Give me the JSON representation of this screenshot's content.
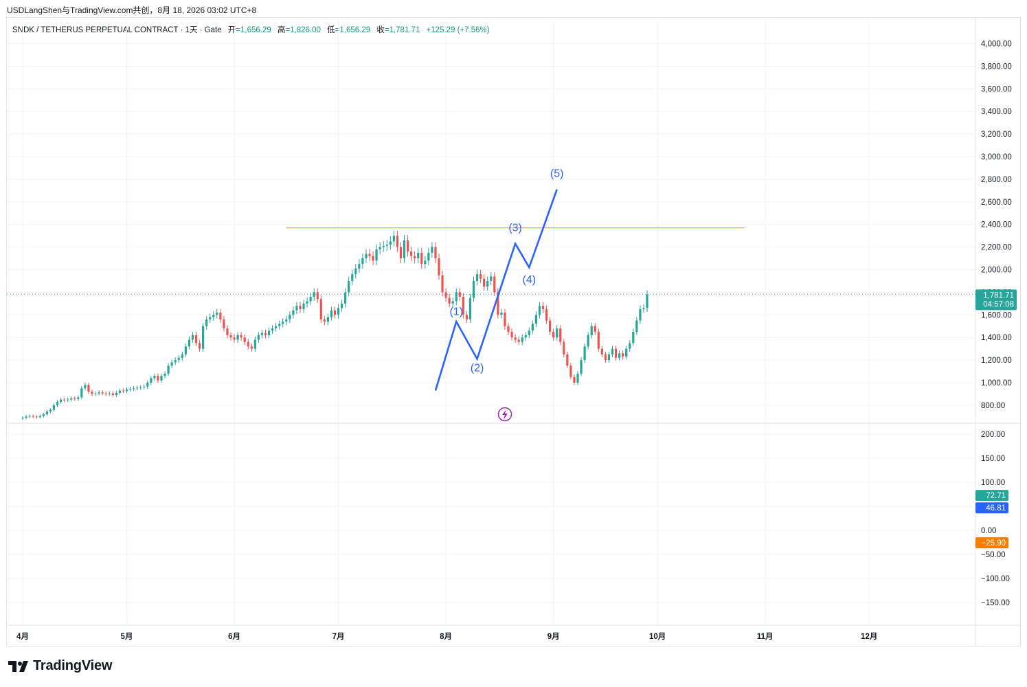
{
  "caption": "USDLangShen与TradingView.com共创，8月 18, 2026 03:02 UTC+8",
  "header": {
    "symbol": "SNDK / TETHERUS PERPETUAL CONTRACT · 1天 · Gate",
    "open_label": "开",
    "open": "=1,656.29",
    "high_label": "高",
    "high": "=1,826.00",
    "low_label": "低",
    "low": "=1,656.29",
    "close_label": "收",
    "close": "=1,781.71",
    "change": "+125.29 (+7.56%)"
  },
  "price_badge": {
    "price": "1,781.71",
    "countdown": "04:57:08"
  },
  "indicator_badges": [
    {
      "value": "72.71",
      "color": "#26a69a"
    },
    {
      "value": "46.81",
      "color": "#2962ff"
    },
    {
      "value": "−25.90",
      "color": "#f57c00"
    }
  ],
  "brand": "TradingView",
  "colors": {
    "up": "#26a69a",
    "down": "#ef5350",
    "wave": "#2962ff",
    "resistance": "#e6b800",
    "last_price_line": "#26a69a"
  },
  "chart_data": {
    "type": "candlestick",
    "main_pane": {
      "y_ticks": [
        800,
        1000,
        1200,
        1400,
        1600,
        1800,
        2000,
        2200,
        2400,
        2600,
        2800,
        3000,
        3200,
        3400,
        3600,
        3800,
        4000
      ],
      "y_tick_labels": [
        "800.00",
        "1,000.00",
        "1,200.00",
        "1,400.00",
        "1,600.00",
        "1,800.00",
        "2,000.00",
        "2,200.00",
        "2,400.00",
        "2,600.00",
        "2,800.00",
        "3,000.00",
        "3,200.00",
        "3,400.00",
        "3,600.00",
        "3,800.00",
        "4,000.00"
      ],
      "last_price": 1781.71,
      "resistance_level": 2370,
      "candles_start_day": "4月1日",
      "closes": [
        690,
        700,
        705,
        700,
        695,
        705,
        720,
        745,
        760,
        800,
        830,
        850,
        845,
        850,
        860,
        855,
        870,
        950,
        980,
        920,
        900,
        905,
        915,
        905,
        900,
        905,
        890,
        910,
        930,
        925,
        940,
        945,
        950,
        955,
        960,
        965,
        1000,
        1040,
        1060,
        1020,
        1060,
        1080,
        1150,
        1180,
        1200,
        1220,
        1250,
        1320,
        1380,
        1420,
        1350,
        1300,
        1500,
        1560,
        1580,
        1600,
        1620,
        1560,
        1480,
        1420,
        1400,
        1380,
        1420,
        1400,
        1360,
        1320,
        1300,
        1380,
        1420,
        1440,
        1420,
        1460,
        1480,
        1500,
        1520,
        1540,
        1560,
        1600,
        1640,
        1680,
        1650,
        1700,
        1720,
        1760,
        1800,
        1740,
        1560,
        1540,
        1580,
        1640,
        1600,
        1660,
        1700,
        1800,
        1900,
        1960,
        2010,
        2050,
        2100,
        2140,
        2120,
        2080,
        2180,
        2200,
        2210,
        2220,
        2250,
        2300,
        2200,
        2100,
        2260,
        2160,
        2120,
        2100,
        2150,
        2050,
        2080,
        2150,
        2200,
        2100,
        1950,
        1800,
        1750,
        1700,
        1720,
        1800,
        1760,
        1600,
        1560,
        1750,
        1900,
        1960,
        1920,
        1850,
        1900,
        1940,
        1800,
        1600,
        1620,
        1500,
        1450,
        1400,
        1380,
        1360,
        1400,
        1420,
        1460,
        1520,
        1600,
        1680,
        1650,
        1550,
        1450,
        1400,
        1480,
        1360,
        1250,
        1150,
        1050,
        1000,
        1080,
        1200,
        1320,
        1420,
        1500,
        1450,
        1300,
        1250,
        1200,
        1250,
        1300,
        1220,
        1260,
        1230,
        1300,
        1350,
        1450,
        1550,
        1650,
        1660,
        1781.71
      ]
    },
    "indicator_pane": {
      "y_ticks": [
        -150,
        -100,
        -50,
        0,
        50,
        100,
        150,
        200
      ],
      "y_tick_labels": [
        "−150.00",
        "−100.00",
        "−50.00",
        "0.00",
        "50.00",
        "100.00",
        "150.00",
        "200.00"
      ]
    },
    "x_labels": [
      {
        "label": "4月",
        "day": 0
      },
      {
        "label": "5月",
        "day": 30
      },
      {
        "label": "6月",
        "day": 61
      },
      {
        "label": "7月",
        "day": 91
      },
      {
        "label": "8月",
        "day": 122
      },
      {
        "label": "9月",
        "day": 153
      },
      {
        "label": "10月",
        "day": 183
      },
      {
        "label": "11月",
        "day": 214
      },
      {
        "label": "12月",
        "day": 244
      }
    ],
    "elliott_wave": {
      "points": [
        {
          "day": 119,
          "price": 930
        },
        {
          "day": 125,
          "price": 1540
        },
        {
          "day": 131,
          "price": 1210
        },
        {
          "day": 142,
          "price": 2230
        },
        {
          "day": 146,
          "price": 2020
        },
        {
          "day": 154,
          "price": 2710
        }
      ],
      "labels": [
        {
          "text": "(1)",
          "day": 125,
          "price": 1600
        },
        {
          "text": "(2)",
          "day": 131,
          "price": 1100
        },
        {
          "text": "(3)",
          "day": 142,
          "price": 2340
        },
        {
          "text": "(4)",
          "day": 146,
          "price": 1880
        },
        {
          "text": "(5)",
          "day": 154,
          "price": 2820
        }
      ]
    }
  }
}
